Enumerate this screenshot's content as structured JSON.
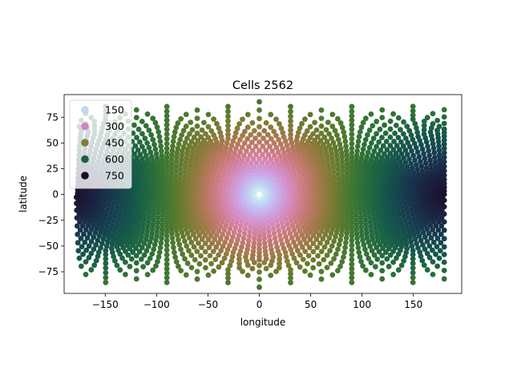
{
  "chart_data": {
    "type": "scatter",
    "title": "Cells 2562",
    "xlabel": "longitude",
    "ylabel": "latitude",
    "xlim": [
      -190,
      197
    ],
    "ylim": [
      -96,
      97
    ],
    "x_ticks": [
      -150,
      -100,
      -50,
      0,
      50,
      100,
      150
    ],
    "y_ticks": [
      -75,
      -50,
      -25,
      0,
      25,
      50,
      75
    ],
    "grid": false,
    "legend_position": "top-left",
    "colormap": "cubehelix",
    "legend_entries": [
      {
        "label": "150",
        "color": "#c2d6f3"
      },
      {
        "label": "300",
        "color": "#d185c0"
      },
      {
        "label": "450",
        "color": "#857a3c"
      },
      {
        "label": "600",
        "color": "#1a6146"
      },
      {
        "label": "750",
        "color": "#1a0d26"
      }
    ],
    "series": [
      {
        "point_count": 2562,
        "grid_type": "icosahedral",
        "color_value": "great-circle distance to (0,0)",
        "color_range": [
          0,
          800
        ]
      }
    ]
  }
}
